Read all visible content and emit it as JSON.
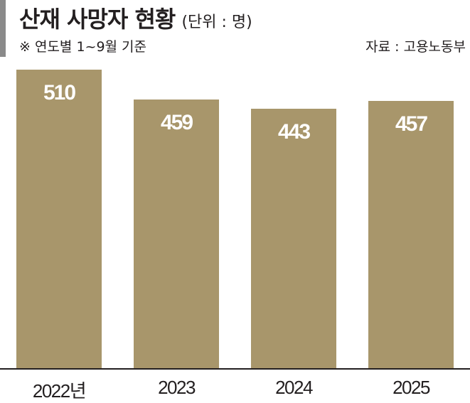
{
  "header": {
    "title": "산재 사망자 현황",
    "unit": "(단위 : 명)",
    "note": "※ 연도별 1~9월 기준",
    "source": "자료 : 고용노동부"
  },
  "colors": {
    "bar": "#a8966b",
    "accent_bar": "#8a8a8a",
    "text": "#231f20",
    "bar_label": "#ffffff"
  },
  "chart_data": {
    "type": "bar",
    "title": "산재 사망자 현황",
    "subtitle": "※ 연도별 1~9월 기준",
    "unit": "명",
    "source": "고용노동부",
    "categories": [
      "2022년",
      "2023",
      "2024",
      "2025"
    ],
    "values": [
      510,
      459,
      443,
      457
    ],
    "xlabel": "",
    "ylabel": "",
    "grid": false,
    "legend": null
  },
  "bars": [
    {
      "category": "2022년",
      "value": "510"
    },
    {
      "category": "2023",
      "value": "459"
    },
    {
      "category": "2024",
      "value": "443"
    },
    {
      "category": "2025",
      "value": "457"
    }
  ]
}
